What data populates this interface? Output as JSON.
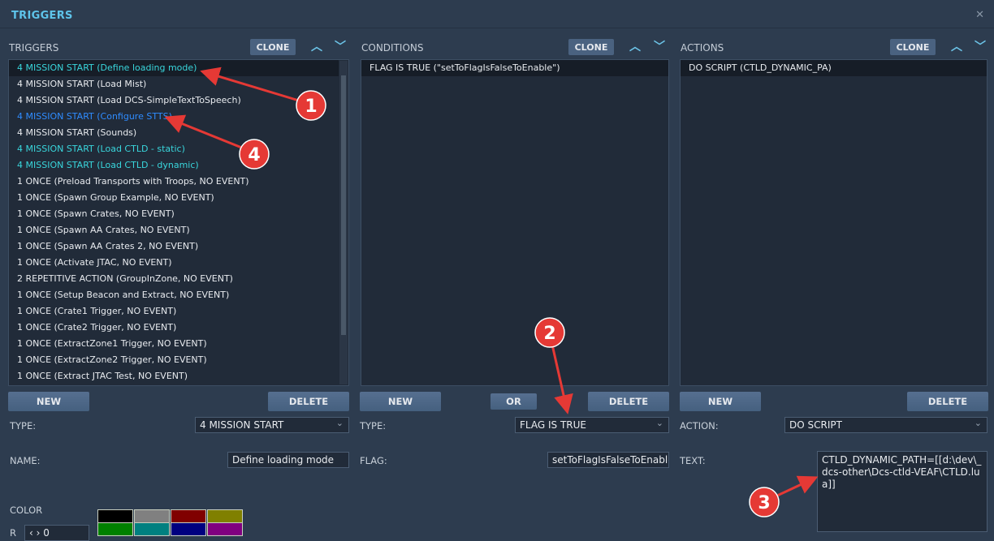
{
  "window": {
    "title": "TRIGGERS",
    "close_icon": "close-icon"
  },
  "triggers": {
    "header": "TRIGGERS",
    "clone": "CLONE",
    "items": [
      {
        "label": "4 MISSION START (Define loading mode)",
        "color": "cyan",
        "selected": true
      },
      {
        "label": "4 MISSION START (Load Mist)",
        "color": "white"
      },
      {
        "label": "4 MISSION START (Load DCS-SimpleTextToSpeech)",
        "color": "white"
      },
      {
        "label": "4 MISSION START (Configure STTS)",
        "color": "blue"
      },
      {
        "label": "4 MISSION START (Sounds)",
        "color": "white"
      },
      {
        "label": "4 MISSION START (Load CTLD - static)",
        "color": "cyan"
      },
      {
        "label": "4 MISSION START (Load CTLD - dynamic)",
        "color": "cyan"
      },
      {
        "label": "1 ONCE (Preload Transports with Troops, NO EVENT)",
        "color": "white"
      },
      {
        "label": "1 ONCE (Spawn Group Example, NO EVENT)",
        "color": "white"
      },
      {
        "label": "1 ONCE (Spawn Crates, NO EVENT)",
        "color": "white"
      },
      {
        "label": "1 ONCE (Spawn AA Crates, NO EVENT)",
        "color": "white"
      },
      {
        "label": "1 ONCE (Spawn AA Crates 2, NO EVENT)",
        "color": "white"
      },
      {
        "label": "1 ONCE (Activate JTAC, NO EVENT)",
        "color": "white"
      },
      {
        "label": "2 REPETITIVE ACTION (GroupInZone, NO EVENT)",
        "color": "white"
      },
      {
        "label": "1 ONCE (Setup Beacon and Extract, NO EVENT)",
        "color": "white"
      },
      {
        "label": "1 ONCE (Crate1 Trigger, NO EVENT)",
        "color": "white"
      },
      {
        "label": "1 ONCE (Crate2 Trigger, NO EVENT)",
        "color": "white"
      },
      {
        "label": "1 ONCE (ExtractZone1 Trigger, NO EVENT)",
        "color": "white"
      },
      {
        "label": "1 ONCE (ExtractZone2 Trigger, NO EVENT)",
        "color": "white"
      },
      {
        "label": "1 ONCE (Extract JTAC Test, NO EVENT)",
        "color": "white"
      }
    ],
    "new": "NEW",
    "delete": "DELETE",
    "type_label": "TYPE:",
    "type_value": "4 MISSION START",
    "name_label": "NAME:",
    "name_value": "Define loading mode",
    "color_label": "COLOR",
    "r_label": "R",
    "r_value": "0",
    "swatches": [
      "#000000",
      "#808080",
      "#800000",
      "#808000",
      "#008000",
      "#008080",
      "#000080",
      "#800080"
    ]
  },
  "conditions": {
    "header": "CONDITIONS",
    "clone": "CLONE",
    "items": [
      "FLAG IS TRUE (\"setToFlagIsFalseToEnable\")"
    ],
    "new": "NEW",
    "or": "OR",
    "delete": "DELETE",
    "type_label": "TYPE:",
    "type_value": "FLAG IS TRUE",
    "flag_label": "FLAG:",
    "flag_value": "setToFlagIsFalseToEnable"
  },
  "actions": {
    "header": "ACTIONS",
    "clone": "CLONE",
    "items": [
      "DO SCRIPT (CTLD_DYNAMIC_PA)"
    ],
    "new": "NEW",
    "delete": "DELETE",
    "action_label": "ACTION:",
    "action_value": "DO SCRIPT",
    "text_label": "TEXT:",
    "text_value": "CTLD_DYNAMIC_PATH=[[d:\\dev\\_dcs-other\\Dcs-ctld-VEAF\\CTLD.lua]]"
  },
  "annotations": [
    "1",
    "2",
    "3",
    "4"
  ],
  "colors": {
    "cyan": "#39d6dc",
    "blue": "#2f8cff",
    "annotation": "#e53935"
  }
}
